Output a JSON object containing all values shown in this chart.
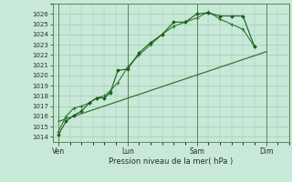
{
  "bg_color": "#c8e8d8",
  "grid_color": "#a0c8b8",
  "line_color_s1": "#1a5c1a",
  "line_color_s2": "#2d7a2d",
  "line_color_trend": "#2d7a2d",
  "xlabel": "Pression niveau de la mer( hPa )",
  "ylim": [
    1013.5,
    1027.0
  ],
  "yticks": [
    1014,
    1015,
    1016,
    1017,
    1018,
    1019,
    1020,
    1021,
    1022,
    1023,
    1024,
    1025,
    1026
  ],
  "xtick_labels": [
    "Ven",
    "Lun",
    "Sam",
    "Dim"
  ],
  "xtick_positions": [
    0,
    36,
    72,
    108
  ],
  "xlim": [
    -3,
    120
  ],
  "series1_x": [
    0,
    4,
    8,
    12,
    16,
    20,
    24,
    27,
    31,
    36,
    42,
    48,
    54,
    60,
    66,
    72,
    78,
    84,
    90,
    96,
    102
  ],
  "series1_y": [
    1014.2,
    1015.5,
    1016.1,
    1016.5,
    1017.3,
    1017.8,
    1017.8,
    1018.3,
    1020.5,
    1020.6,
    1022.2,
    1023.2,
    1024.0,
    1025.2,
    1025.2,
    1026.0,
    1026.1,
    1025.8,
    1025.8,
    1025.8,
    1022.8
  ],
  "series2_x": [
    0,
    4,
    8,
    12,
    16,
    20,
    24,
    27,
    31,
    36,
    42,
    48,
    54,
    60,
    66,
    72,
    78,
    84,
    90,
    96,
    102
  ],
  "series2_y": [
    1014.5,
    1016.0,
    1016.8,
    1017.0,
    1017.3,
    1017.8,
    1018.0,
    1018.5,
    1019.3,
    1020.8,
    1022.0,
    1023.0,
    1024.0,
    1024.8,
    1025.2,
    1025.6,
    1026.2,
    1025.5,
    1025.0,
    1024.5,
    1022.8
  ],
  "trend_x": [
    0,
    108
  ],
  "trend_y": [
    1015.5,
    1022.3
  ],
  "spine_color": "#558855"
}
